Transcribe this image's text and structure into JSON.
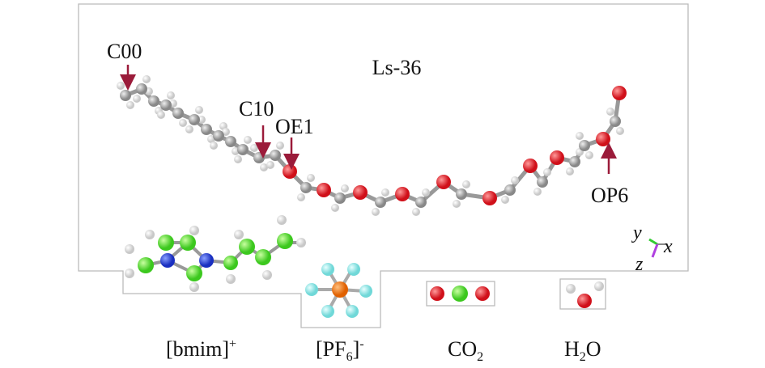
{
  "title": "Ls-36",
  "atom_labels": [
    "C00",
    "C10",
    "OE1",
    "OP6"
  ],
  "axes": [
    "y",
    "x",
    "z"
  ],
  "species": [
    {
      "base": "[bmim]",
      "sup": "+"
    },
    {
      "base": "[PF",
      "sub": "6",
      "tail": "]",
      "sup": "-"
    },
    {
      "base": "CO",
      "sub": "2"
    },
    {
      "base": "H",
      "sub": "2",
      "tail": "O"
    }
  ]
}
